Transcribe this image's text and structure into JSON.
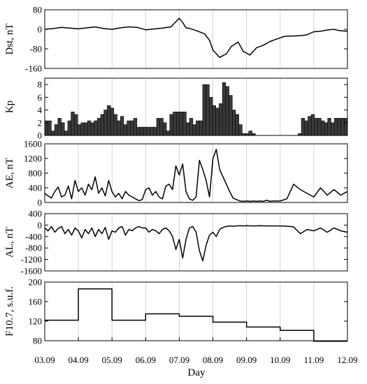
{
  "chart_data": [
    {
      "type": "line",
      "ylabel": "Dst, nT",
      "ylim": [
        -160,
        80
      ],
      "yticks": [
        80,
        0,
        -80,
        -160
      ],
      "x": [
        0,
        0.25,
        0.5,
        0.75,
        1.0,
        1.25,
        1.5,
        1.75,
        2.0,
        2.25,
        2.5,
        2.75,
        3.0,
        3.5,
        3.75,
        4.0,
        4.1,
        4.2,
        4.3,
        4.5,
        4.75,
        4.9,
        5.0,
        5.2,
        5.4,
        5.55,
        5.75,
        5.9,
        6.1,
        6.3,
        6.5,
        6.7,
        6.85,
        7.0,
        7.1,
        7.2,
        7.3,
        7.5,
        7.65,
        7.8,
        8.0,
        8.2,
        8.4,
        8.6,
        8.75,
        9.0
      ],
      "y": [
        0,
        3,
        8,
        5,
        2,
        6,
        10,
        3,
        0,
        6,
        10,
        8,
        -2,
        5,
        10,
        45,
        28,
        6,
        4,
        -5,
        -18,
        -45,
        -85,
        -115,
        -100,
        -70,
        -52,
        -90,
        -105,
        -75,
        -65,
        -50,
        -42,
        -35,
        -30,
        -28,
        -28,
        -27,
        -25,
        -22,
        -10,
        -8,
        -3,
        0,
        -5,
        -8
      ],
      "color": "#000000"
    },
    {
      "type": "bar",
      "ylabel": "Kp",
      "ylim": [
        0,
        9
      ],
      "yticks": [
        0,
        2,
        4,
        6,
        8
      ],
      "bar_hours": 3,
      "values": [
        2.3,
        2.3,
        0.7,
        1.7,
        2.7,
        2.0,
        0.7,
        2.3,
        3.7,
        3.3,
        1.7,
        2.0,
        2.0,
        2.3,
        2.0,
        2.3,
        2.7,
        3.3,
        4.0,
        4.7,
        4.3,
        3.3,
        2.3,
        3.0,
        1.7,
        2.3,
        2.3,
        2.7,
        1.3,
        1.3,
        1.3,
        1.3,
        1.3,
        1.3,
        2.7,
        2.7,
        2.0,
        0.7,
        3.3,
        3.7,
        3.7,
        3.7,
        3.7,
        2.0,
        2.7,
        1.7,
        2.3,
        2.3,
        8.0,
        8.0,
        6.0,
        4.7,
        4.3,
        5.0,
        8.3,
        7.7,
        6.3,
        4.0,
        3.3,
        1.7,
        0.3,
        0.3,
        0.7,
        0.3,
        0,
        0,
        0,
        0,
        0,
        0,
        0,
        0,
        0,
        0,
        0,
        0,
        0,
        0.3,
        2.7,
        2.3,
        3.0,
        3.3,
        2.7,
        2.7,
        2.3,
        2.0,
        2.7,
        2.0,
        2.7,
        2.7,
        2.7,
        2.7
      ],
      "color": "#000000"
    },
    {
      "type": "line",
      "ylabel": "AE, nT",
      "ylim": [
        0,
        1600
      ],
      "yticks": [
        0,
        400,
        800,
        1200,
        1600
      ],
      "x": [
        0,
        0.1,
        0.2,
        0.3,
        0.4,
        0.5,
        0.6,
        0.7,
        0.8,
        0.9,
        1.0,
        1.1,
        1.2,
        1.3,
        1.4,
        1.5,
        1.6,
        1.7,
        1.8,
        1.9,
        2.0,
        2.1,
        2.2,
        2.3,
        2.4,
        2.5,
        2.6,
        2.7,
        2.8,
        2.9,
        3.0,
        3.1,
        3.2,
        3.3,
        3.4,
        3.5,
        3.6,
        3.7,
        3.8,
        3.9,
        4.0,
        4.1,
        4.2,
        4.3,
        4.4,
        4.5,
        4.6,
        4.7,
        4.8,
        4.9,
        5.0,
        5.1,
        5.2,
        5.3,
        5.4,
        5.5,
        5.6,
        5.7,
        5.8,
        5.9,
        6.0,
        6.1,
        6.2,
        6.3,
        6.4,
        6.5,
        6.6,
        6.7,
        6.8,
        6.9,
        7.0,
        7.2,
        7.4,
        7.6,
        7.8,
        8.0,
        8.2,
        8.4,
        8.6,
        8.8,
        9.0
      ],
      "y": [
        250,
        180,
        120,
        300,
        420,
        150,
        200,
        450,
        100,
        600,
        300,
        400,
        200,
        500,
        350,
        700,
        250,
        400,
        180,
        600,
        300,
        150,
        250,
        100,
        300,
        200,
        150,
        100,
        50,
        80,
        350,
        400,
        200,
        300,
        150,
        100,
        450,
        500,
        350,
        1000,
        750,
        1050,
        300,
        100,
        60,
        150,
        1150,
        900,
        600,
        150,
        1200,
        1450,
        900,
        700,
        500,
        300,
        120,
        80,
        40,
        30,
        40,
        30,
        40,
        30,
        40,
        30,
        60,
        30,
        40,
        40,
        40,
        100,
        500,
        350,
        250,
        150,
        400,
        200,
        350,
        200,
        300
      ],
      "color": "#000000"
    },
    {
      "type": "line",
      "ylabel": "AL, nT",
      "ylim": [
        -1600,
        400
      ],
      "yticks": [
        400,
        0,
        -400,
        -800,
        -1200,
        -1600
      ],
      "x": [
        0,
        0.1,
        0.2,
        0.3,
        0.4,
        0.5,
        0.6,
        0.7,
        0.8,
        0.9,
        1.0,
        1.1,
        1.2,
        1.3,
        1.4,
        1.5,
        1.6,
        1.7,
        1.8,
        1.9,
        2.0,
        2.1,
        2.2,
        2.3,
        2.4,
        2.5,
        2.6,
        2.7,
        2.8,
        2.9,
        3.0,
        3.1,
        3.2,
        3.3,
        3.4,
        3.5,
        3.6,
        3.7,
        3.8,
        3.9,
        4.0,
        4.1,
        4.2,
        4.3,
        4.4,
        4.5,
        4.6,
        4.7,
        4.8,
        4.9,
        5.0,
        5.1,
        5.2,
        5.3,
        5.4,
        5.5,
        5.6,
        5.7,
        5.8,
        5.9,
        6.0,
        6.2,
        6.4,
        6.6,
        6.8,
        7.0,
        7.2,
        7.4,
        7.6,
        7.8,
        8.0,
        8.2,
        8.4,
        8.6,
        8.8,
        9.0
      ],
      "y": [
        -100,
        -200,
        -50,
        -250,
        -120,
        -50,
        -300,
        -150,
        -350,
        -100,
        -200,
        -450,
        -150,
        -300,
        -100,
        -400,
        -150,
        -300,
        -80,
        -500,
        -200,
        -250,
        -100,
        -50,
        -350,
        -150,
        -200,
        -100,
        -50,
        -100,
        -100,
        -250,
        -150,
        -200,
        -300,
        -150,
        -100,
        -200,
        -400,
        -850,
        -500,
        -1150,
        -500,
        -100,
        -50,
        -250,
        -900,
        -1250,
        -700,
        -350,
        -250,
        -400,
        -150,
        -80,
        -50,
        -30,
        -40,
        -30,
        -20,
        -30,
        -20,
        -30,
        -20,
        -30,
        -30,
        -30,
        -40,
        -60,
        -300,
        -150,
        -200,
        -100,
        -250,
        -100,
        -200,
        -250
      ],
      "color": "#000000"
    },
    {
      "type": "line",
      "step": true,
      "ylabel": "F10.7, s.u.f.",
      "ylim": [
        80,
        200
      ],
      "yticks": [
        80,
        120,
        160,
        200
      ],
      "x": [
        0,
        1,
        1,
        2,
        2,
        3,
        3,
        4,
        4,
        5,
        5,
        6,
        6,
        7,
        7,
        8,
        8,
        9
      ],
      "y": [
        122,
        122,
        186,
        186,
        122,
        122,
        135,
        135,
        130,
        130,
        118,
        118,
        108,
        108,
        101,
        101,
        79,
        79
      ],
      "color": "#000000"
    }
  ],
  "x_axis": {
    "label": "Day",
    "range": [
      0,
      9
    ],
    "ticks": [
      "03.09",
      "04.09",
      "05.09",
      "06.09",
      "07.09",
      "08.09",
      "09.09",
      "10.09",
      "11.09",
      "12.09"
    ]
  }
}
